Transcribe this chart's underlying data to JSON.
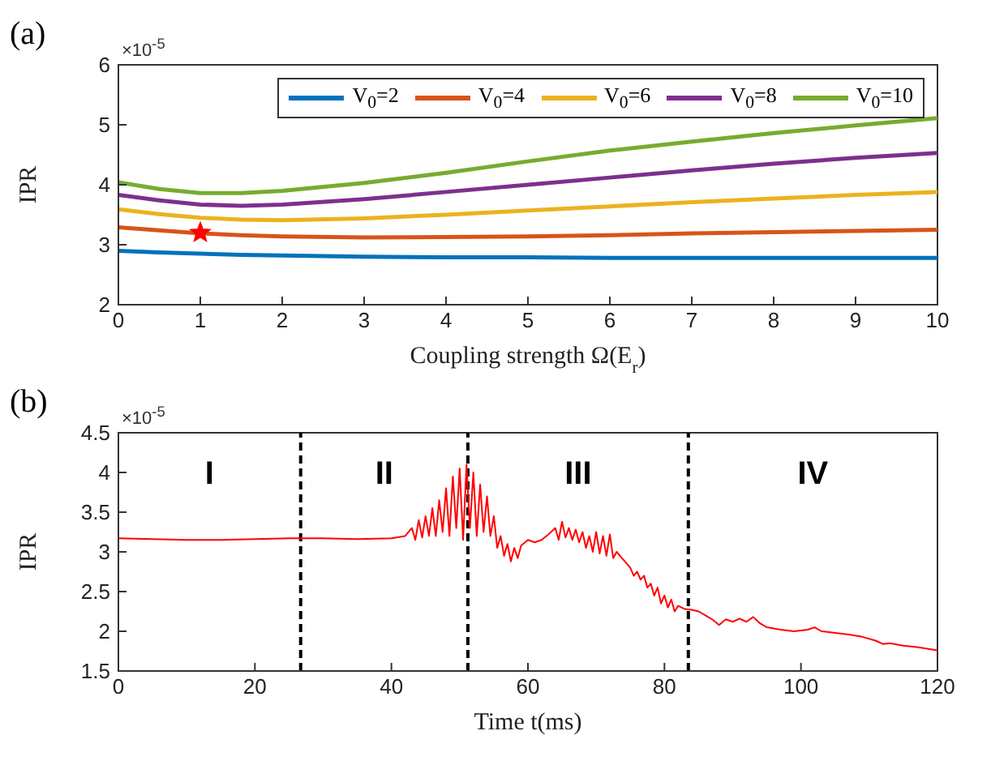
{
  "chart_data": [
    {
      "type": "line",
      "xlabel": "Coupling strength Ω(E$_{r}$)",
      "ylabel": "IPR",
      "annotations": [
        "(a)",
        "×10$^{-5}$"
      ],
      "xlim": [
        0,
        10
      ],
      "xticks": [
        0,
        1,
        2,
        3,
        4,
        5,
        6,
        7,
        8,
        9,
        10
      ],
      "ylim": [
        2,
        6
      ],
      "yticks": [
        2,
        3,
        4,
        5,
        6
      ],
      "legend": "top right",
      "grid": false,
      "marker": "none",
      "x": [
        0,
        0.5,
        1,
        1.5,
        2,
        3,
        4,
        5,
        6,
        7,
        8,
        9,
        10
      ],
      "series": [
        {
          "name": "V$_{0}$=2",
          "color": "#0072bd",
          "values": [
            2.9,
            2.87,
            2.85,
            2.83,
            2.82,
            2.8,
            2.79,
            2.79,
            2.78,
            2.78,
            2.78,
            2.78,
            2.78
          ]
        },
        {
          "name": "V$_{0}$=4",
          "color": "#d95319",
          "values": [
            3.29,
            3.24,
            3.19,
            3.16,
            3.14,
            3.12,
            3.13,
            3.14,
            3.16,
            3.19,
            3.21,
            3.23,
            3.25
          ]
        },
        {
          "name": "V$_{0}$=6",
          "color": "#edb120",
          "values": [
            3.59,
            3.51,
            3.45,
            3.42,
            3.41,
            3.44,
            3.5,
            3.57,
            3.64,
            3.71,
            3.77,
            3.83,
            3.88
          ]
        },
        {
          "name": "V$_{0}$=8",
          "color": "#7e2f8e",
          "values": [
            3.83,
            3.74,
            3.67,
            3.65,
            3.67,
            3.76,
            3.88,
            4.0,
            4.12,
            4.24,
            4.35,
            4.45,
            4.53
          ]
        },
        {
          "name": "V$_{0}$=10",
          "color": "#77ac30",
          "values": [
            4.04,
            3.93,
            3.86,
            3.86,
            3.9,
            4.03,
            4.2,
            4.39,
            4.57,
            4.72,
            4.86,
            4.99,
            5.11
          ]
        },
        {
          "type": "scatter",
          "marker": "star",
          "color": "#ff0000",
          "x": [
            1
          ],
          "values": [
            3.2
          ]
        }
      ]
    },
    {
      "type": "line",
      "xlabel": "Time t(ms)",
      "ylabel": "IPR",
      "annotations": [
        "(b)",
        "×10$^{-5}$",
        "I",
        "II",
        "III",
        "IV"
      ],
      "xlim": [
        0,
        120
      ],
      "xticks": [
        0,
        20,
        40,
        60,
        80,
        100,
        120
      ],
      "ylim": [
        1.5,
        4.5
      ],
      "yticks": [
        1.5,
        2,
        2.5,
        3,
        3.5,
        4,
        4.5
      ],
      "grid": false,
      "marker": "none",
      "ref_lines": [
        {
          "axis": "x",
          "value": 26.7,
          "color": "#000000",
          "line_style": "dashed"
        },
        {
          "axis": "x",
          "value": 51.2,
          "color": "#000000",
          "line_style": "dashed"
        },
        {
          "axis": "x",
          "value": 83.5,
          "color": "#000000",
          "line_style": "dashed"
        }
      ],
      "series": [
        {
          "color": "#ff0000",
          "x": [
            0,
            5,
            10,
            15,
            20,
            25,
            30,
            35,
            40,
            42,
            43,
            43.5,
            44,
            44.5,
            45,
            45.5,
            46,
            46.5,
            47,
            47.5,
            48,
            48.5,
            49,
            49.5,
            50,
            50.5,
            51,
            51.5,
            52,
            52.5,
            53,
            53.5,
            54,
            54.5,
            55,
            55.5,
            56,
            56.5,
            57,
            57.5,
            58,
            58.5,
            59,
            60,
            61,
            62,
            63,
            64,
            64.5,
            65,
            65.5,
            66,
            66.5,
            67,
            67.5,
            68,
            68.5,
            69,
            69.5,
            70,
            70.5,
            71,
            71.5,
            72,
            72.5,
            73,
            74,
            75,
            75.5,
            76,
            76.5,
            77,
            77.5,
            78,
            78.5,
            79,
            79.5,
            80,
            80.5,
            81,
            81.5,
            82,
            83,
            84,
            85,
            86,
            87,
            88,
            89,
            90,
            91,
            92,
            93,
            94,
            95,
            97,
            99,
            101,
            102,
            103,
            105,
            107,
            109,
            111,
            112,
            113,
            115,
            117,
            120
          ],
          "values": [
            3.17,
            3.16,
            3.15,
            3.15,
            3.16,
            3.17,
            3.17,
            3.16,
            3.17,
            3.2,
            3.3,
            3.15,
            3.4,
            3.18,
            3.45,
            3.2,
            3.55,
            3.2,
            3.65,
            3.25,
            3.8,
            3.2,
            3.95,
            3.3,
            4.05,
            3.15,
            4.1,
            3.3,
            4.0,
            3.2,
            3.85,
            3.25,
            3.7,
            3.2,
            3.45,
            3.05,
            3.2,
            2.95,
            3.1,
            2.88,
            3.05,
            2.92,
            3.08,
            3.15,
            3.12,
            3.15,
            3.22,
            3.3,
            3.15,
            3.38,
            3.18,
            3.3,
            3.15,
            3.28,
            3.12,
            3.25,
            3.05,
            3.2,
            3.0,
            3.25,
            2.98,
            3.2,
            2.95,
            3.22,
            2.92,
            3.0,
            2.9,
            2.8,
            2.7,
            2.75,
            2.65,
            2.7,
            2.55,
            2.6,
            2.45,
            2.55,
            2.35,
            2.45,
            2.3,
            2.4,
            2.25,
            2.32,
            2.28,
            2.27,
            2.25,
            2.2,
            2.15,
            2.08,
            2.15,
            2.12,
            2.16,
            2.12,
            2.18,
            2.1,
            2.05,
            2.02,
            2.0,
            2.02,
            2.05,
            2.0,
            1.98,
            1.96,
            1.93,
            1.88,
            1.84,
            1.85,
            1.82,
            1.8,
            1.76
          ]
        }
      ]
    }
  ]
}
